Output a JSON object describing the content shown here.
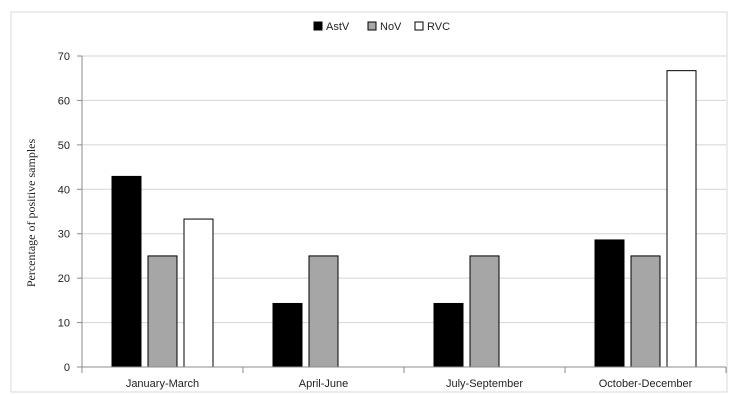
{
  "chart_data": {
    "type": "bar",
    "categories": [
      "January-March",
      "April-June",
      "July-September",
      "October-December"
    ],
    "series": [
      {
        "name": "AstV",
        "color": "#000000",
        "values": [
          42.9,
          14.3,
          14.3,
          28.6
        ]
      },
      {
        "name": "NoV",
        "color": "#a6a6a6",
        "values": [
          25,
          25,
          25,
          25
        ]
      },
      {
        "name": "RVC",
        "color": "#ffffff",
        "values": [
          33.3,
          0,
          0,
          66.7
        ]
      }
    ],
    "title": "",
    "xlabel": "",
    "ylabel": "Percentage of positive samples",
    "ylim": [
      0,
      70
    ],
    "yticks": [
      0,
      10,
      20,
      30,
      40,
      50,
      60,
      70
    ],
    "grid": true,
    "legend_position": "top-center"
  }
}
